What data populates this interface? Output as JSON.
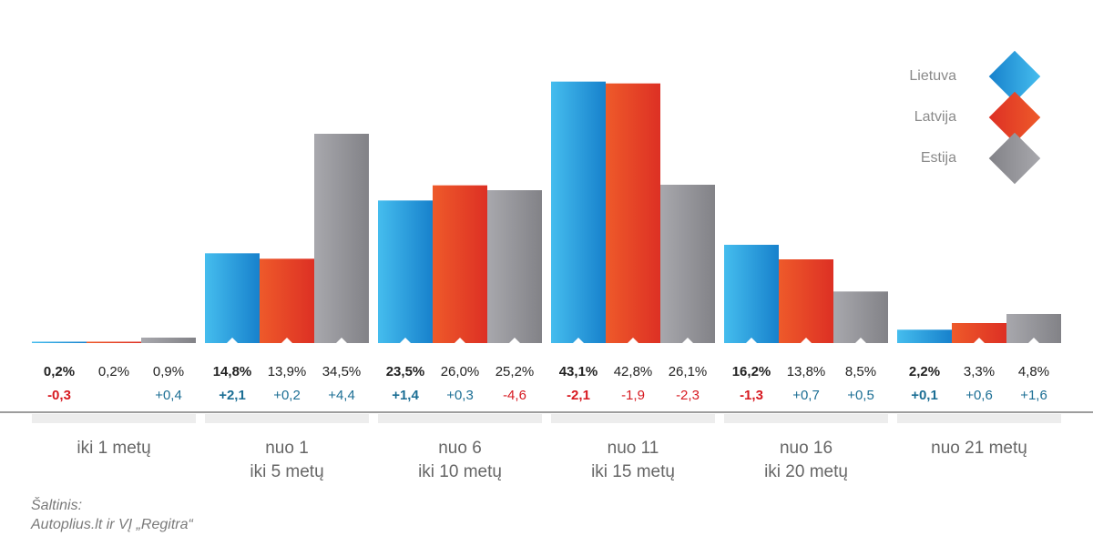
{
  "chart_data": {
    "type": "bar",
    "categories": [
      "iki 1 metų",
      "nuo 1\niki 5 metų",
      "nuo 6\niki 10 metų",
      "nuo 11\niki 15 metų",
      "nuo 16\niki 20 metų",
      "nuo 21 metų"
    ],
    "series": [
      {
        "name": "Lietuva",
        "values": [
          0.2,
          14.8,
          23.5,
          43.1,
          16.2,
          2.2
        ],
        "labels": [
          "0,2%",
          "14,8%",
          "23,5%",
          "43,1%",
          "16,2%",
          "2,2%"
        ],
        "changes": [
          "-0,3",
          "+2,1",
          "+1,4",
          "-2,1",
          "-1,3",
          "+0,1"
        ]
      },
      {
        "name": "Latvija",
        "values": [
          0.2,
          13.9,
          26.0,
          42.8,
          13.8,
          3.3
        ],
        "labels": [
          "0,2%",
          "13,9%",
          "26,0%",
          "42,8%",
          "13,8%",
          "3,3%"
        ],
        "changes": [
          "",
          "+0,2",
          "+0,3",
          "-1,9",
          "+0,7",
          "+0,6"
        ]
      },
      {
        "name": "Estija",
        "values": [
          0.9,
          34.5,
          25.2,
          26.1,
          8.5,
          4.8
        ],
        "labels": [
          "0,9%",
          "34,5%",
          "25,2%",
          "26,1%",
          "8,5%",
          "4,8%"
        ],
        "changes": [
          "+0,4",
          "+4,4",
          "-4,6",
          "-2,3",
          "+0,5",
          "+1,6"
        ]
      }
    ],
    "ylim": [
      0,
      45
    ],
    "title": "",
    "xlabel": "",
    "ylabel": "",
    "legend": "top-right",
    "grid": false
  },
  "legend": [
    {
      "label": "Lietuva",
      "color": "#1f8fd6"
    },
    {
      "label": "Latvija",
      "color": "#e0482a"
    },
    {
      "label": "Estija",
      "color": "#8d8d92"
    }
  ],
  "colors": {
    "positive_change": "#1b6e94",
    "negative_change": "#d71920",
    "value_text": "#222222",
    "category_text": "#666666",
    "band": "#ededed",
    "axis": "#7d7d7d"
  },
  "source": {
    "line1": "Šaltinis:",
    "line2": "Autoplius.lt ir VĮ „Regitra“"
  }
}
